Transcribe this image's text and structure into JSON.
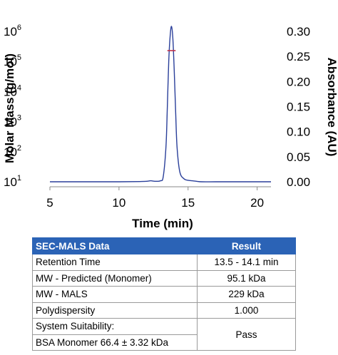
{
  "chart_data": {
    "type": "line",
    "x_axis": {
      "label": "Time (min)",
      "range": [
        5,
        21
      ],
      "ticks": [
        5,
        10,
        15,
        20
      ]
    },
    "y_left": {
      "label": "Molar Mass (g/mol)",
      "scale": "log",
      "range": [
        10,
        1000000
      ],
      "ticks": [
        {
          "base": "10",
          "exp": "1"
        },
        {
          "base": "10",
          "exp": "2"
        },
        {
          "base": "10",
          "exp": "3"
        },
        {
          "base": "10",
          "exp": "4"
        },
        {
          "base": "10",
          "exp": "5"
        },
        {
          "base": "10",
          "exp": "6"
        }
      ]
    },
    "y_right": {
      "label": "Absorbance (AU)",
      "range": [
        0.0,
        0.3
      ],
      "ticks": [
        "0.00",
        "0.05",
        "0.10",
        "0.15",
        "0.20",
        "0.25",
        "0.30"
      ]
    },
    "series": [
      {
        "axis": "right",
        "color": "#2a3f9a",
        "x": [
          5.0,
          8.0,
          10.0,
          11.5,
          12.0,
          12.3,
          12.6,
          13.0,
          13.2,
          13.4,
          13.5,
          13.6,
          13.7,
          13.8,
          13.9,
          14.0,
          14.1,
          14.2,
          14.4,
          14.7,
          15.0,
          15.3,
          15.6,
          16.0,
          17.0,
          19.0,
          21.0
        ],
        "y": [
          0.0,
          0.0,
          0.0,
          0.0005,
          0.001,
          0.002,
          0.001,
          0.002,
          0.01,
          0.07,
          0.15,
          0.24,
          0.29,
          0.31,
          0.285,
          0.22,
          0.14,
          0.07,
          0.02,
          0.006,
          0.003,
          0.002,
          0.001,
          0.0,
          0.0,
          0.0,
          0.0
        ]
      },
      {
        "axis": "left",
        "color": "#c0304a",
        "x": [
          13.5,
          14.1
        ],
        "y": [
          229000,
          229000
        ]
      }
    ]
  },
  "table": {
    "headers": [
      "SEC-MALS Data",
      "Result"
    ],
    "rows": [
      {
        "label": "Retention Time",
        "value": "13.5 - 14.1 min"
      },
      {
        "label": "MW - Predicted (Monomer)",
        "value": "95.1 kDa"
      },
      {
        "label": "MW - MALS",
        "value": "229 kDa"
      },
      {
        "label": "Polydispersity",
        "value": "1.000"
      }
    ],
    "suitability": {
      "label_line1": "System Suitability:",
      "label_line2": "BSA Monomer 66.4 ± 3.32 kDa",
      "value": "Pass"
    }
  }
}
